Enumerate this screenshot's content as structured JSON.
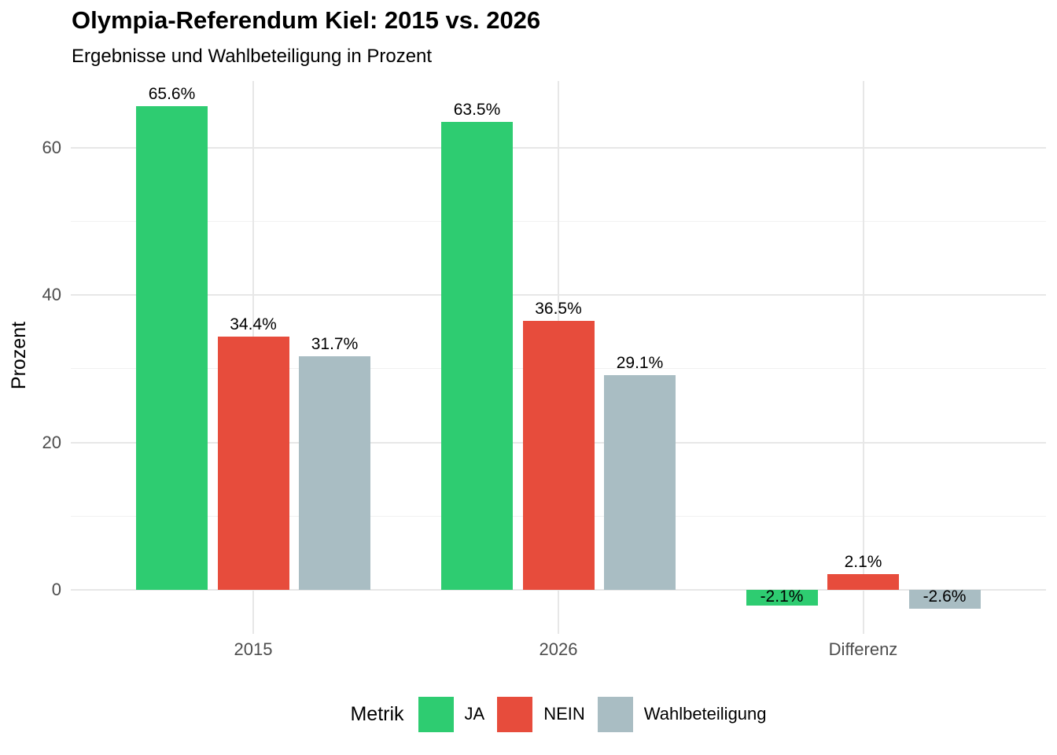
{
  "chart_data": {
    "type": "bar",
    "title": "Olympia-Referendum Kiel: 2015 vs. 2026",
    "subtitle": "Ergebnisse und Wahlbeteiligung in Prozent",
    "ylabel": "Prozent",
    "xlabel": "",
    "categories": [
      "2015",
      "2026",
      "Differenz"
    ],
    "series": [
      {
        "name": "JA",
        "color": "#2ecc71",
        "values": [
          65.6,
          63.5,
          -2.1
        ],
        "labels": [
          "65.6%",
          "63.5%",
          "-2.1%"
        ]
      },
      {
        "name": "NEIN",
        "color": "#e74c3c",
        "values": [
          34.4,
          36.5,
          2.1
        ],
        "labels": [
          "34.4%",
          "36.5%",
          "2.1%"
        ]
      },
      {
        "name": "Wahlbeteiligung",
        "color": "#a9bdc3",
        "values": [
          31.7,
          29.1,
          -2.6
        ],
        "labels": [
          "31.7%",
          "29.1%",
          "-2.6%"
        ]
      }
    ],
    "y_ticks": [
      0,
      20,
      40,
      60
    ],
    "y_minor_ticks": [
      10,
      30,
      50
    ],
    "ylim": [
      -6,
      69
    ],
    "grid": true,
    "legend_title": "Metrik",
    "legend_position": "bottom",
    "colors": {
      "ja": "#2ecc71",
      "nein": "#e74c3c",
      "wahlbeteiligung": "#a9bdc3",
      "grid_major": "#e7e7e7",
      "grid_minor": "#f1f1f1",
      "axis_text": "#4d4d4d",
      "text": "#000000",
      "background": "#ffffff"
    }
  }
}
